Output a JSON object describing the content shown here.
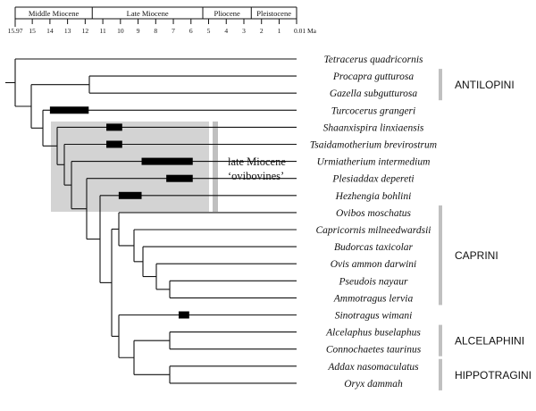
{
  "colors": {
    "line": "#111111",
    "range_bar": "#000000",
    "highlight_box": "#d3d3d3",
    "bracket": "#c0c0c0"
  },
  "time_scale": {
    "epochs": [
      {
        "name": "Middle  Miocene",
        "start": 15.97,
        "end": 11.6
      },
      {
        "name": "Late Miocene",
        "start": 11.6,
        "end": 5.33
      },
      {
        "name": "Pliocene",
        "start": 5.33,
        "end": 2.58
      },
      {
        "name": "Pleistocene",
        "start": 2.58,
        "end": 0.01
      }
    ],
    "ticks": [
      {
        "label": "15.97",
        "ma": 15.97
      },
      {
        "label": "15",
        "ma": 15
      },
      {
        "label": "14",
        "ma": 14
      },
      {
        "label": "13",
        "ma": 13
      },
      {
        "label": "12",
        "ma": 12
      },
      {
        "label": "11",
        "ma": 11
      },
      {
        "label": "10",
        "ma": 10
      },
      {
        "label": "9",
        "ma": 9
      },
      {
        "label": "8",
        "ma": 8
      },
      {
        "label": "7",
        "ma": 7
      },
      {
        "label": "6",
        "ma": 6
      },
      {
        "label": "5",
        "ma": 5
      },
      {
        "label": "4",
        "ma": 4
      },
      {
        "label": "3",
        "ma": 3
      },
      {
        "label": "2",
        "ma": 2
      },
      {
        "label": "1",
        "ma": 1
      },
      {
        "label": "0.01 Ma",
        "ma": 0.01
      }
    ]
  },
  "taxa": [
    "Tetracerus  quadricornis",
    "Procapra  gutturosa",
    "Gazella  subgutturosa",
    "Turcocerus  grangeri",
    "Shaanxispira  linxiaensis",
    "Tsaidamotherium brevirostrum",
    "Urmiatherium  intermedium",
    "Plesiaddax  depereti",
    "Hezhengia  bohlini",
    "Ovibos  moschatus",
    "Capricornis  milneedwardsii",
    "Budorcas  taxicolar",
    "Ovis  ammon  darwini",
    "Pseudois  nayaur",
    "Ammotragus  lervia",
    "Sinotragus  wimani",
    "Alcelaphus  buselaphus",
    "Connochaetes  taurinus",
    "Addax  nasomaculatus",
    "Oryx  dammah"
  ],
  "fossil_ranges": [
    {
      "taxon_index": 3,
      "start_ma": 14.0,
      "end_ma": 11.8
    },
    {
      "taxon_index": 4,
      "start_ma": 10.8,
      "end_ma": 9.9
    },
    {
      "taxon_index": 5,
      "start_ma": 10.8,
      "end_ma": 9.9
    },
    {
      "taxon_index": 6,
      "start_ma": 8.8,
      "end_ma": 5.9
    },
    {
      "taxon_index": 7,
      "start_ma": 7.4,
      "end_ma": 5.9
    },
    {
      "taxon_index": 8,
      "start_ma": 10.1,
      "end_ma": 8.8
    },
    {
      "taxon_index": 15,
      "start_ma": 6.7,
      "end_ma": 6.1
    }
  ],
  "highlight": {
    "line1": "late Miocene",
    "line2": "‘ovibovines’"
  },
  "tribes": [
    {
      "name": "ANTILOPINI",
      "first": 1,
      "last": 2
    },
    {
      "name": "CAPRINI",
      "first": 9,
      "last": 14
    },
    {
      "name": "ALCELAPHINI",
      "first": 16,
      "last": 17
    },
    {
      "name": "HIPPOTRAGINI",
      "first": 18,
      "last": 19
    }
  ]
}
